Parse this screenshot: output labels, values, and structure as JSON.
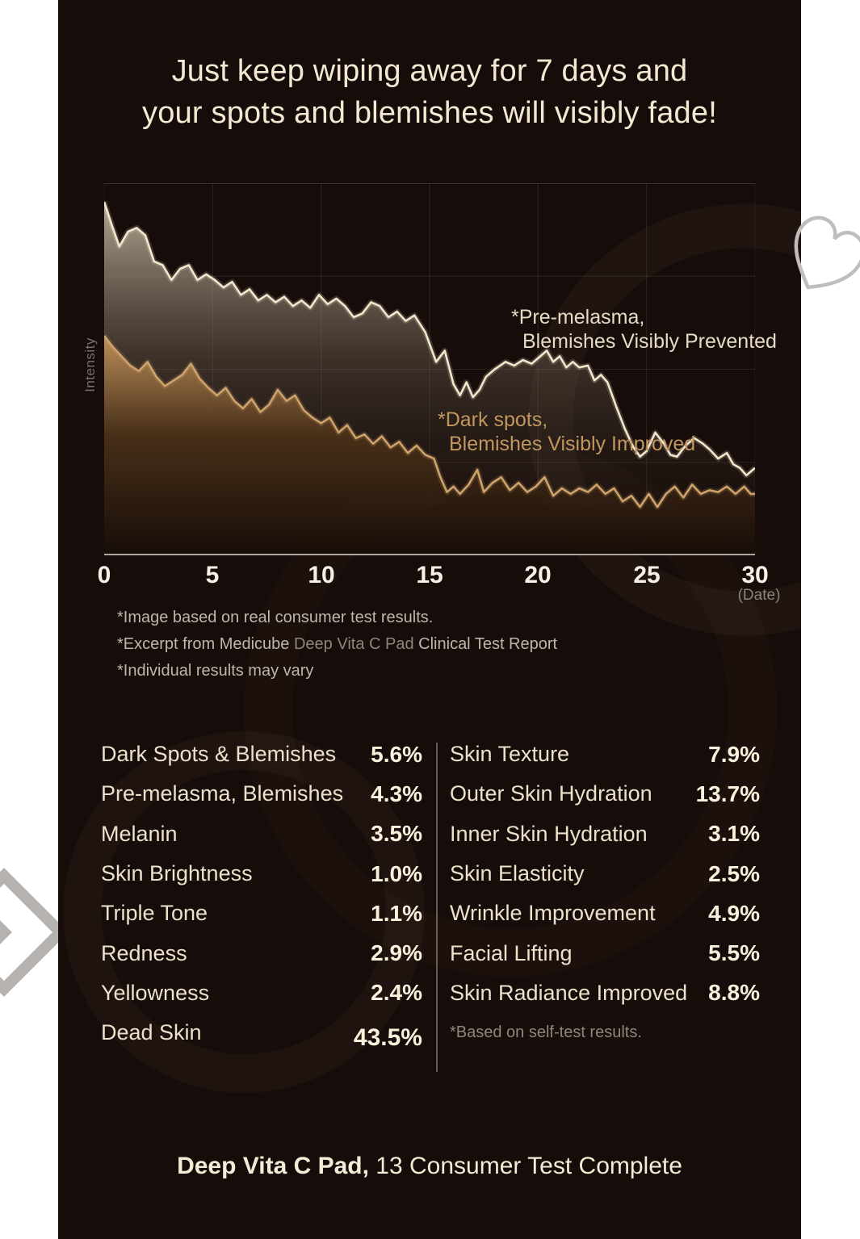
{
  "page": {
    "title_line1": "Just keep wiping away for 7 days and",
    "title_line2": "your spots and blemishes will visibly fade!",
    "footer_product": "Deep Vita C Pad,",
    "footer_rest": " 13 Consumer Test Complete"
  },
  "chart_data": {
    "type": "area",
    "title": "",
    "ylabel": "Intensity",
    "x_unit": "(Date)",
    "xlim": [
      0,
      30
    ],
    "ylim": [
      0,
      100
    ],
    "grid": true,
    "legend_position": "inside",
    "x_ticks": [
      0,
      5,
      10,
      15,
      20,
      25,
      30
    ],
    "series": [
      {
        "name": "Pre-melasma, Blemishes Visibly Prevented",
        "annotation_line1": "*Pre-melasma,",
        "annotation_line2": "Blemishes Visibly Prevented",
        "color": "#f2e7cd",
        "points": [
          [
            0,
            95
          ],
          [
            0.4,
            88
          ],
          [
            0.7,
            83
          ],
          [
            1.1,
            87
          ],
          [
            1.5,
            88
          ],
          [
            1.9,
            86
          ],
          [
            2.3,
            79
          ],
          [
            2.7,
            78
          ],
          [
            3.1,
            74
          ],
          [
            3.5,
            77
          ],
          [
            3.9,
            78
          ],
          [
            4.3,
            74
          ],
          [
            4.7,
            75.5
          ],
          [
            5.1,
            74
          ],
          [
            5.5,
            72
          ],
          [
            5.9,
            73.5
          ],
          [
            6.3,
            70
          ],
          [
            6.7,
            71.5
          ],
          [
            7.1,
            68.5
          ],
          [
            7.5,
            70
          ],
          [
            7.9,
            68
          ],
          [
            8.3,
            69.5
          ],
          [
            8.7,
            67
          ],
          [
            9.1,
            68.5
          ],
          [
            9.5,
            66.5
          ],
          [
            9.9,
            70
          ],
          [
            10.3,
            67.5
          ],
          [
            10.7,
            69
          ],
          [
            11.1,
            67
          ],
          [
            11.5,
            64
          ],
          [
            11.9,
            65
          ],
          [
            12.3,
            68
          ],
          [
            12.7,
            67
          ],
          [
            13.1,
            64
          ],
          [
            13.5,
            65.5
          ],
          [
            13.9,
            63
          ],
          [
            14.3,
            64.5
          ],
          [
            14.8,
            60
          ],
          [
            15.3,
            52
          ],
          [
            15.7,
            55
          ],
          [
            16.1,
            46
          ],
          [
            16.4,
            43
          ],
          [
            16.7,
            46.5
          ],
          [
            17,
            42.5
          ],
          [
            17.3,
            44.5
          ],
          [
            17.6,
            48
          ],
          [
            18,
            50
          ],
          [
            18.5,
            52
          ],
          [
            18.9,
            51
          ],
          [
            19.3,
            52.5
          ],
          [
            19.7,
            51.5
          ],
          [
            20.1,
            53.5
          ],
          [
            20.4,
            55
          ],
          [
            20.7,
            52
          ],
          [
            21,
            53.5
          ],
          [
            21.3,
            50.5
          ],
          [
            21.6,
            52
          ],
          [
            21.9,
            50.5
          ],
          [
            22.3,
            51
          ],
          [
            22.6,
            47
          ],
          [
            22.9,
            48.5
          ],
          [
            23.2,
            46.5
          ],
          [
            23.6,
            40
          ],
          [
            24,
            34
          ],
          [
            24.4,
            29
          ],
          [
            24.7,
            26.5
          ],
          [
            25,
            28
          ],
          [
            25.4,
            33
          ],
          [
            25.8,
            30
          ],
          [
            26.1,
            27
          ],
          [
            26.4,
            26.5
          ],
          [
            26.8,
            29.5
          ],
          [
            27.2,
            31.5
          ],
          [
            27.6,
            30
          ],
          [
            27.9,
            28.5
          ],
          [
            28.3,
            26
          ],
          [
            28.7,
            27.5
          ],
          [
            29,
            24.5
          ],
          [
            29.3,
            23.5
          ],
          [
            29.6,
            21.5
          ],
          [
            30,
            23.5
          ]
        ]
      },
      {
        "name": "Dark spots, Blemishes Visibly Improved",
        "annotation_line1": "*Dark spots,",
        "annotation_line2": "Blemishes Visibly Improved",
        "color": "#cda26b",
        "points": [
          [
            0,
            59
          ],
          [
            0.4,
            56
          ],
          [
            0.8,
            53.5
          ],
          [
            1.2,
            51
          ],
          [
            1.6,
            49.5
          ],
          [
            2,
            52
          ],
          [
            2.4,
            48
          ],
          [
            2.8,
            45.5
          ],
          [
            3.2,
            47
          ],
          [
            3.6,
            48.5
          ],
          [
            4,
            51.5
          ],
          [
            4.4,
            47.5
          ],
          [
            4.8,
            45
          ],
          [
            5.2,
            43
          ],
          [
            5.6,
            45
          ],
          [
            6,
            41.5
          ],
          [
            6.4,
            39.5
          ],
          [
            6.8,
            42
          ],
          [
            7.2,
            38.5
          ],
          [
            7.6,
            40.5
          ],
          [
            8,
            44.5
          ],
          [
            8.4,
            41.5
          ],
          [
            8.8,
            43
          ],
          [
            9.2,
            39
          ],
          [
            9.6,
            37
          ],
          [
            10,
            35.5
          ],
          [
            10.4,
            37
          ],
          [
            10.8,
            33
          ],
          [
            11.2,
            35
          ],
          [
            11.6,
            31.5
          ],
          [
            12,
            32.5
          ],
          [
            12.4,
            30
          ],
          [
            12.8,
            32
          ],
          [
            13.2,
            29
          ],
          [
            13.6,
            30.5
          ],
          [
            14,
            27.5
          ],
          [
            14.4,
            29.5
          ],
          [
            14.8,
            27
          ],
          [
            15.2,
            26
          ],
          [
            15.5,
            21
          ],
          [
            15.8,
            17
          ],
          [
            16.1,
            18.5
          ],
          [
            16.4,
            16.5
          ],
          [
            16.8,
            19
          ],
          [
            17.2,
            23
          ],
          [
            17.5,
            17
          ],
          [
            17.9,
            19.5
          ],
          [
            18.3,
            21
          ],
          [
            18.7,
            17.5
          ],
          [
            19.1,
            19.5
          ],
          [
            19.5,
            17
          ],
          [
            19.9,
            18.5
          ],
          [
            20.3,
            21
          ],
          [
            20.7,
            16
          ],
          [
            21.1,
            18
          ],
          [
            21.5,
            16.5
          ],
          [
            21.9,
            18
          ],
          [
            22.3,
            17
          ],
          [
            22.7,
            19
          ],
          [
            23.1,
            16.5
          ],
          [
            23.5,
            18
          ],
          [
            23.9,
            14.5
          ],
          [
            24.3,
            16
          ],
          [
            24.7,
            13
          ],
          [
            25.1,
            16.5
          ],
          [
            25.5,
            13
          ],
          [
            25.9,
            16.5
          ],
          [
            26.3,
            18.5
          ],
          [
            26.7,
            15.5
          ],
          [
            27.1,
            19
          ],
          [
            27.5,
            16.5
          ],
          [
            27.9,
            17.5
          ],
          [
            28.3,
            17
          ],
          [
            28.7,
            18.5
          ],
          [
            29.1,
            16.5
          ],
          [
            29.5,
            18.5
          ],
          [
            29.8,
            16.5
          ],
          [
            30,
            16.5
          ]
        ]
      }
    ]
  },
  "footnotes": {
    "line1": "*Image based on real consumer test results.",
    "line2_pre": "*Excerpt from Medicube ",
    "line2_product": "Deep Vita C Pad",
    "line2_post": " Clinical Test Report",
    "line3": "*Individual results may vary"
  },
  "stats": {
    "left": [
      {
        "label": "Dark Spots & Blemishes",
        "value": "5.6%"
      },
      {
        "label": "Pre-melasma, Blemishes",
        "value": "4.3%"
      },
      {
        "label": "Melanin",
        "value": "3.5%"
      },
      {
        "label": "Skin Brightness",
        "value": "1.0%"
      },
      {
        "label": "Triple Tone",
        "value": "1.1%"
      },
      {
        "label": "Redness",
        "value": "2.9%"
      },
      {
        "label": "Yellowness",
        "value": "2.4%"
      },
      {
        "label": "Dead Skin",
        "value": "43.5%"
      }
    ],
    "right": [
      {
        "label": "Skin Texture",
        "value": "7.9%"
      },
      {
        "label": "Outer Skin Hydration",
        "value": "13.7%"
      },
      {
        "label": "Inner Skin Hydration",
        "value": "3.1%"
      },
      {
        "label": "Skin Elasticity",
        "value": "2.5%"
      },
      {
        "label": "Wrinkle Improvement",
        "value": "4.9%"
      },
      {
        "label": "Facial Lifting",
        "value": "5.5%"
      },
      {
        "label": "Skin Radiance Improved",
        "value": "8.8%"
      }
    ],
    "right_footnote": "*Based on self-test results."
  },
  "colors": {
    "card_bg": "#160c09",
    "cream_text": "#f3e9d3",
    "value_text": "#f9f1db",
    "muted_text": "#bfb6ac",
    "dim_text": "#8e857c",
    "series_cream": "#f2e7cd",
    "series_gold": "#cda26b",
    "axis_line": "#d7cdc0",
    "watermark_gray": "#bfbcb9"
  }
}
